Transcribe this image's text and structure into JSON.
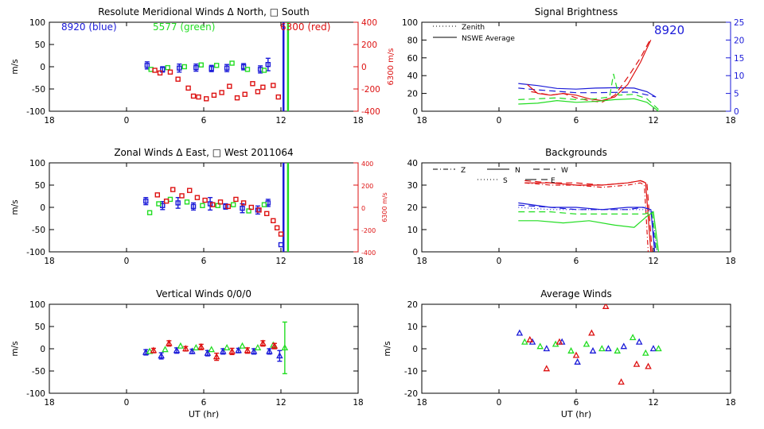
{
  "colors": {
    "blue": "#1b1bd8",
    "green": "#22dd22",
    "red": "#dd1111",
    "black": "#000000"
  },
  "chart_data": [
    {
      "id": "meridional",
      "type": "scatter",
      "title": "Resolute Meridional Winds Δ North, □ South",
      "xlabel": "",
      "ylabel": "m/s",
      "y2label": "6300 m/s",
      "xlim": [
        18,
        42
      ],
      "ylim": [
        -100,
        100
      ],
      "y2lim": [
        -400,
        400
      ],
      "xticks": [
        18,
        24,
        30,
        36,
        42
      ],
      "xticklabels": [
        "18",
        "0",
        "6",
        "12",
        "18"
      ],
      "yticks": [
        -100,
        -50,
        0,
        50,
        100
      ],
      "y2ticks": [
        -400,
        -200,
        0,
        200,
        400
      ],
      "legend": [
        {
          "text": "8920 (blue)",
          "color": "blue"
        },
        {
          "text": "5577 (green)",
          "color": "green"
        },
        {
          "text": "6300 (red)",
          "color": "red"
        }
      ],
      "vlines": [
        {
          "x": 36.2,
          "color": "blue"
        },
        {
          "x": 36.55,
          "color": "green"
        }
      ],
      "series": [
        {
          "name": "8920 (blue)",
          "color": "blue",
          "marker": "square",
          "x": [
            25.6,
            26.8,
            28.1,
            29.4,
            30.6,
            31.8,
            33.1,
            34.4,
            35.0
          ],
          "y": [
            3,
            -6,
            -3,
            -2,
            -4,
            -3,
            0,
            -6,
            5
          ],
          "err": [
            8,
            6,
            9,
            8,
            7,
            8,
            7,
            8,
            14
          ]
        },
        {
          "name": "5577 (green)",
          "color": "green",
          "marker": "square",
          "x": [
            25.9,
            27.2,
            28.5,
            29.8,
            31.0,
            32.2,
            33.4,
            34.7
          ],
          "y": [
            -6,
            -2,
            0,
            4,
            3,
            8,
            -6,
            -8
          ]
        },
        {
          "name": "6300 (red)",
          "color": "red",
          "marker": "square",
          "x": [
            26.2,
            26.6,
            27.4,
            28.0,
            28.8,
            29.2,
            29.6,
            30.2,
            30.8,
            31.4,
            32.0,
            32.6,
            33.2,
            33.8,
            34.2,
            34.6,
            35.4,
            35.8,
            36.0
          ],
          "y": [
            -8,
            -14,
            -12,
            -28,
            -48,
            -66,
            -68,
            -72,
            -64,
            -58,
            -44,
            -70,
            -62,
            -38,
            -56,
            -46,
            -42,
            -68,
            -110
          ]
        }
      ]
    },
    {
      "id": "brightness",
      "type": "line",
      "title": "Signal Brightness",
      "xlabel": "",
      "ylabel": "",
      "y2label": "",
      "annotation": "8920",
      "xlim": [
        18,
        42
      ],
      "ylim": [
        0,
        100
      ],
      "y2lim": [
        0,
        25
      ],
      "xticks": [
        18,
        24,
        30,
        36,
        42
      ],
      "xticklabels": [
        "18",
        "0",
        "6",
        "12",
        "18"
      ],
      "yticks": [
        0,
        20,
        40,
        60,
        80,
        100
      ],
      "y2ticks": [
        0,
        5,
        10,
        15,
        20,
        25
      ],
      "legend": [
        {
          "text": "Zenith",
          "dash": "1,3"
        },
        {
          "text": "NSWE Average",
          "dash": ""
        }
      ],
      "series": [
        {
          "color": "blue",
          "dash": "",
          "axis": "y2",
          "x": [
            25.5,
            27,
            28.5,
            30,
            31.5,
            33,
            34.5,
            35.5,
            36.2
          ],
          "y": [
            7.8,
            7.2,
            6.4,
            6.2,
            6.5,
            6.6,
            6.5,
            5.5,
            4
          ]
        },
        {
          "color": "blue",
          "dash": "8,5",
          "axis": "y2",
          "x": [
            25.5,
            27,
            28.5,
            30,
            31.5,
            33,
            34.5,
            35.5,
            36.2
          ],
          "y": [
            6.5,
            6,
            5.6,
            5.2,
            5.2,
            5.3,
            5.4,
            4.6,
            4
          ]
        },
        {
          "color": "red",
          "dash": "",
          "axis": "y",
          "x": [
            26.2,
            27,
            28,
            29,
            30,
            31,
            32,
            33,
            34,
            35,
            35.8
          ],
          "y": [
            30,
            20,
            18,
            20,
            18,
            14,
            12,
            16,
            30,
            55,
            80
          ]
        },
        {
          "color": "red",
          "dash": "8,5",
          "axis": "y",
          "x": [
            26.5,
            28,
            29,
            30,
            31,
            32,
            33,
            34,
            35,
            35.8
          ],
          "y": [
            22,
            18,
            20,
            15,
            12,
            10,
            18,
            38,
            60,
            82
          ]
        },
        {
          "color": "green",
          "dash": "",
          "axis": "y",
          "x": [
            25.5,
            27,
            28.5,
            30,
            31.5,
            33,
            34.5,
            35.5,
            36.4
          ],
          "y": [
            8,
            9,
            12,
            10,
            11,
            13,
            14,
            10,
            0
          ]
        },
        {
          "color": "green",
          "dash": "8,5",
          "axis": "y",
          "x": [
            25.5,
            27,
            28.5,
            30,
            31.5,
            32.6,
            32.9,
            33.3,
            34.5,
            35.5,
            36.4
          ],
          "y": [
            13,
            14,
            15,
            13,
            14,
            16,
            42,
            18,
            19,
            14,
            2
          ]
        }
      ]
    },
    {
      "id": "zonal",
      "type": "scatter",
      "title": "Zonal Winds Δ East, □ West 2011064",
      "xlabel": "",
      "ylabel": "m/s",
      "y2label": "6300 m/s",
      "xlim": [
        18,
        42
      ],
      "ylim": [
        -100,
        100
      ],
      "y2lim": [
        -400,
        400
      ],
      "xticks": [
        18,
        24,
        30,
        36,
        42
      ],
      "xticklabels": [
        "18",
        "0",
        "6",
        "12",
        "18"
      ],
      "yticks": [
        -100,
        -50,
        0,
        50,
        100
      ],
      "y2ticks": [
        -400,
        -200,
        0,
        200,
        400
      ],
      "vlines": [
        {
          "x": 36.2,
          "color": "blue"
        },
        {
          "x": 36.55,
          "color": "green"
        }
      ],
      "series": [
        {
          "color": "blue",
          "marker": "square",
          "x": [
            25.5,
            26.8,
            28.0,
            29.2,
            30.5,
            31.7,
            33.0,
            34.2,
            35.0,
            36.0
          ],
          "y": [
            14,
            4,
            10,
            2,
            8,
            2,
            -2,
            -6,
            10,
            -84
          ],
          "err": [
            8,
            9,
            12,
            8,
            14,
            6,
            10,
            9,
            8,
            0
          ]
        },
        {
          "color": "green",
          "marker": "square",
          "x": [
            25.8,
            26.5,
            27.4,
            28.7,
            29.9,
            31.1,
            32.3,
            33.5,
            34.7
          ],
          "y": [
            -12,
            8,
            18,
            12,
            4,
            4,
            6,
            -8,
            6
          ]
        },
        {
          "color": "red",
          "marker": "square",
          "x": [
            26.4,
            27.1,
            27.6,
            28.3,
            28.9,
            29.5,
            30.1,
            30.7,
            31.3,
            31.9,
            32.5,
            33.1,
            33.7,
            34.3,
            34.9,
            35.4,
            35.7,
            36.0
          ],
          "y": [
            28,
            14,
            40,
            26,
            38,
            22,
            16,
            6,
            12,
            2,
            18,
            10,
            0,
            -6,
            -14,
            -30,
            -46,
            -60
          ]
        }
      ]
    },
    {
      "id": "backgrounds",
      "type": "line",
      "title": "Backgrounds",
      "xlabel": "",
      "ylabel": "",
      "y2label": "",
      "xlim": [
        18,
        42
      ],
      "ylim": [
        0,
        40
      ],
      "xticks": [
        18,
        24,
        30,
        36,
        42
      ],
      "xticklabels": [
        "18",
        "0",
        "6",
        "12",
        "18"
      ],
      "yticks": [
        0,
        10,
        20,
        30,
        40
      ],
      "legend": [
        {
          "text": "Z",
          "dash": "6,3,1,3"
        },
        {
          "text": "N",
          "dash": ""
        },
        {
          "text": "W",
          "dash": "8,5"
        },
        {
          "text": "S",
          "dash": "1,3"
        },
        {
          "text": "E",
          "dash": "14,6"
        }
      ],
      "series": [
        {
          "color": "red",
          "dash": "",
          "x": [
            26,
            28,
            30,
            32,
            34,
            35,
            35.4,
            35.8
          ],
          "y": [
            31,
            31,
            30,
            30,
            31,
            32,
            31,
            0
          ]
        },
        {
          "color": "red",
          "dash": "8,5",
          "x": [
            26,
            28,
            30,
            32,
            34,
            35,
            35.5,
            35.9
          ],
          "y": [
            32,
            31,
            31,
            30,
            31,
            32,
            31,
            0
          ]
        },
        {
          "color": "red",
          "dash": "6,3,1,3",
          "x": [
            26,
            28,
            30,
            32,
            34,
            35,
            35.3,
            35.6
          ],
          "y": [
            31,
            30,
            30,
            29,
            30,
            31,
            30,
            0
          ]
        },
        {
          "color": "blue",
          "dash": "",
          "x": [
            25.5,
            28,
            30,
            32,
            34,
            35.2,
            35.8,
            36.1
          ],
          "y": [
            22,
            20,
            20,
            19,
            20,
            20,
            19,
            0
          ]
        },
        {
          "color": "blue",
          "dash": "8,5",
          "x": [
            25.5,
            28,
            30,
            32,
            34,
            35.2,
            35.8,
            36.2
          ],
          "y": [
            21,
            20,
            19,
            19,
            19,
            20,
            19,
            0
          ]
        },
        {
          "color": "blue",
          "dash": "1,3",
          "x": [
            25.5,
            28,
            30,
            32,
            34,
            35.2,
            35.9,
            36.3
          ],
          "y": [
            20,
            19,
            19,
            19,
            19,
            19,
            18,
            0
          ]
        },
        {
          "color": "green",
          "dash": "",
          "x": [
            25.5,
            27,
            29,
            31,
            33,
            34.5,
            35.5,
            36.0,
            36.4
          ],
          "y": [
            14,
            14,
            13,
            14,
            12,
            11,
            16,
            18,
            0
          ]
        },
        {
          "color": "green",
          "dash": "8,5",
          "x": [
            25.5,
            28,
            30,
            32,
            34,
            35.3,
            35.9,
            36.3
          ],
          "y": [
            18,
            18,
            17,
            17,
            17,
            17,
            18,
            0
          ]
        }
      ]
    },
    {
      "id": "vertical",
      "type": "scatter",
      "title": "Vertical Winds 0/0/0",
      "xlabel": "UT (hr)",
      "ylabel": "m/s",
      "y2label": "",
      "xlim": [
        18,
        42
      ],
      "ylim": [
        -100,
        100
      ],
      "xticks": [
        18,
        24,
        30,
        36,
        42
      ],
      "xticklabels": [
        "18",
        "0",
        "6",
        "12",
        "18"
      ],
      "yticks": [
        -100,
        -50,
        0,
        50,
        100
      ],
      "series": [
        {
          "color": "blue",
          "marker": "triangle",
          "x": [
            25.5,
            26.7,
            27.9,
            29.1,
            30.3,
            31.5,
            32.7,
            33.9,
            35.1,
            35.9
          ],
          "y": [
            -8,
            -16,
            -4,
            -6,
            -10,
            -6,
            -4,
            -6,
            -6,
            -16
          ],
          "err": [
            6,
            7,
            6,
            5,
            6,
            6,
            5,
            6,
            6,
            12
          ]
        },
        {
          "color": "green",
          "marker": "triangle",
          "x": [
            25.8,
            27.0,
            28.2,
            29.4,
            30.6,
            31.8,
            33.0,
            34.2,
            35.4,
            36.3
          ],
          "y": [
            -6,
            -2,
            6,
            2,
            -2,
            2,
            6,
            2,
            8,
            2
          ],
          "err": [
            0,
            0,
            0,
            0,
            0,
            0,
            0,
            0,
            0,
            58
          ]
        },
        {
          "color": "red",
          "marker": "triangle",
          "x": [
            26.1,
            27.3,
            28.6,
            29.8,
            31.0,
            32.2,
            33.4,
            34.6,
            35.5
          ],
          "y": [
            -4,
            12,
            0,
            4,
            -18,
            -6,
            -4,
            12,
            6
          ],
          "err": [
            5,
            6,
            5,
            6,
            8,
            7,
            6,
            6,
            6
          ]
        }
      ]
    },
    {
      "id": "average",
      "type": "scatter",
      "title": "Average Winds",
      "xlabel": "UT (hr)",
      "ylabel": "m/s",
      "y2label": "",
      "xlim": [
        18,
        42
      ],
      "ylim": [
        -20,
        20
      ],
      "xticks": [
        18,
        24,
        30,
        36,
        42
      ],
      "xticklabels": [
        "18",
        "0",
        "6",
        "12",
        "18"
      ],
      "yticks": [
        -20,
        -10,
        0,
        10,
        20
      ],
      "series": [
        {
          "color": "blue",
          "marker": "triangle",
          "x": [
            25.6,
            26.6,
            27.7,
            28.9,
            30.1,
            31.3,
            32.5,
            33.7,
            34.9,
            36.0
          ],
          "y": [
            7,
            3,
            0,
            3,
            -6,
            -1,
            0,
            1,
            3,
            0
          ]
        },
        {
          "color": "green",
          "marker": "triangle",
          "x": [
            26.0,
            27.2,
            28.4,
            29.6,
            30.8,
            32.0,
            33.2,
            34.4,
            35.4,
            36.4
          ],
          "y": [
            3,
            1,
            2,
            -1,
            2,
            0,
            -1,
            5,
            -2,
            0
          ]
        },
        {
          "color": "red",
          "marker": "triangle",
          "x": [
            26.4,
            27.7,
            28.7,
            30.0,
            31.2,
            32.3,
            33.5,
            34.7,
            35.6
          ],
          "y": [
            4,
            -9,
            3,
            -3,
            7,
            19,
            -15,
            -7,
            -8
          ]
        }
      ]
    }
  ]
}
